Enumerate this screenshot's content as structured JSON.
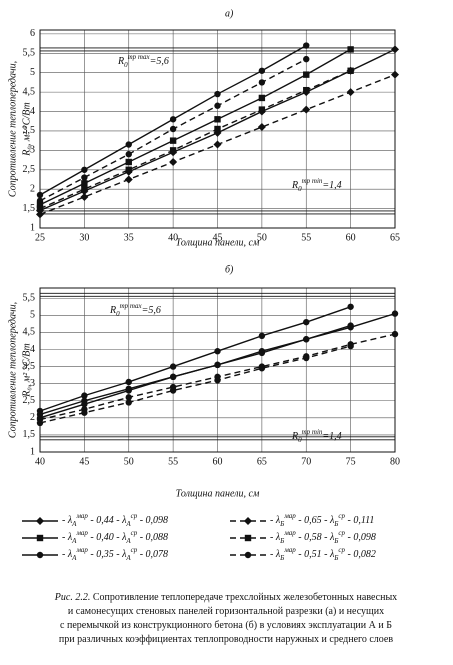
{
  "chart_data": [
    {
      "type": "line",
      "title": "а)",
      "x_label": "Толщина панели, см",
      "y_label": "Сопротивление теплопередачи,",
      "y_label_2": "R₀, м² °С/Вт",
      "x": [
        25,
        30,
        35,
        40,
        45,
        50,
        55,
        60,
        65
      ],
      "xlim": [
        25,
        65
      ],
      "xticks": [
        25,
        30,
        35,
        40,
        45,
        50,
        55,
        60,
        65
      ],
      "ylim": [
        1,
        6.1
      ],
      "yticks": [
        1,
        {
          "value": 1.5,
          "label": "1,5"
        },
        2,
        {
          "value": 2.5,
          "label": "2,5"
        },
        3,
        {
          "value": 3.5,
          "label": "3,5"
        },
        4,
        {
          "value": 4.5,
          "label": "4,5"
        },
        5,
        {
          "value": 5.5,
          "label": "5,5"
        },
        6
      ],
      "grid": true,
      "reference_lines": [
        {
          "value": 5.6,
          "label_main": "R",
          "label_sub": "0",
          "label_sup": "тр max",
          "label_value": "=5,6"
        },
        {
          "value": 1.4,
          "label_main": "R",
          "label_sub": "0",
          "label_sup": "тр min",
          "label_value": "=1,4"
        }
      ],
      "series": [
        {
          "color": "#111111",
          "marker": "diamond",
          "dashed": false,
          "values": [
            1.45,
            1.95,
            2.45,
            2.95,
            3.45,
            4.0,
            4.5,
            5.05,
            5.6
          ],
          "legend": {
            "t1": "- λ",
            "sub1": "А",
            "sup1": "мар",
            "t2": " - 0,44 - λ",
            "sub2": "А",
            "sup2": "ср",
            "t3": " - 0,098"
          }
        },
        {
          "color": "#111111",
          "marker": "diamond",
          "dashed": true,
          "values": [
            1.35,
            1.8,
            2.25,
            2.7,
            3.15,
            3.6,
            4.05,
            4.5,
            4.95
          ],
          "legend": {
            "t1": "- λ",
            "sub1": "Б",
            "sup1": "мар",
            "t2": " - 0,65 - λ",
            "sub2": "Б",
            "sup2": "ср",
            "t3": " - 0,111"
          }
        },
        {
          "color": "#111111",
          "marker": "square",
          "dashed": false,
          "values": [
            1.6,
            2.15,
            2.7,
            3.25,
            3.8,
            4.35,
            4.95,
            5.6,
            null
          ],
          "legend": {
            "t1": "- λ",
            "sub1": "А",
            "sup1": "мар",
            "t2": " - 0,40 - λ",
            "sub2": "А",
            "sup2": "ср",
            "t3": " - 0,088"
          }
        },
        {
          "color": "#111111",
          "marker": "square",
          "dashed": true,
          "values": [
            1.5,
            2.0,
            2.5,
            3.0,
            3.55,
            4.05,
            4.55,
            5.05,
            null
          ],
          "legend": {
            "t1": "- λ",
            "sub1": "Б",
            "sup1": "мар",
            "t2": " - 0,58 - λ",
            "sub2": "Б",
            "sup2": "ср",
            "t3": " - 0,098"
          }
        },
        {
          "color": "#111111",
          "marker": "circle",
          "dashed": false,
          "values": [
            1.85,
            2.5,
            3.15,
            3.8,
            4.45,
            5.05,
            5.7,
            null,
            null
          ],
          "legend": {
            "t1": "- λ",
            "sub1": "А",
            "sup1": "мар",
            "t2": " - 0,35 - λ",
            "sub2": "А",
            "sup2": "ср",
            "t3": " - 0,078"
          }
        },
        {
          "color": "#111111",
          "marker": "circle",
          "dashed": true,
          "values": [
            1.7,
            2.3,
            2.9,
            3.55,
            4.15,
            4.75,
            5.35,
            null,
            null
          ],
          "legend": {
            "t1": "- λ",
            "sub1": "Б",
            "sup1": "мар",
            "t2": " - 0,51 - λ",
            "sub2": "Б",
            "sup2": "ср",
            "t3": " - 0,082"
          }
        }
      ]
    },
    {
      "type": "line",
      "title": "б)",
      "x_label": "Толщина панели, см",
      "y_label": "Сопротивление теплопередачи,",
      "y_label_2": "R₀, м² °С/Вт",
      "x": [
        40,
        45,
        50,
        55,
        60,
        65,
        70,
        75,
        80
      ],
      "xlim": [
        40,
        80
      ],
      "xticks": [
        40,
        45,
        50,
        55,
        60,
        65,
        70,
        75,
        80
      ],
      "ylim": [
        1,
        5.8
      ],
      "yticks": [
        1,
        {
          "value": 1.5,
          "label": "1,5"
        },
        2,
        {
          "value": 2.5,
          "label": "2,5"
        },
        3,
        {
          "value": 3.5,
          "label": "3,5"
        },
        4,
        {
          "value": 4.5,
          "label": "4,5"
        },
        5,
        {
          "value": 5.5,
          "label": "5,5"
        }
      ],
      "grid": true,
      "reference_lines": [
        {
          "value": 5.6,
          "label_main": "R",
          "label_sub": "0",
          "label_sup": "тр max",
          "label_value": "=5,6"
        },
        {
          "value": 1.4,
          "label_main": "R",
          "label_sub": "0",
          "label_sup": "тр min",
          "label_value": "=1,4"
        }
      ],
      "series": [
        {
          "color": "#111111",
          "marker": "circle",
          "dashed": false,
          "values": [
            2.2,
            2.65,
            3.05,
            3.5,
            3.95,
            4.4,
            4.8,
            5.25,
            null
          ]
        },
        {
          "color": "#111111",
          "marker": "circle",
          "dashed": false,
          "values": [
            2.1,
            2.5,
            2.85,
            3.2,
            3.55,
            3.9,
            4.3,
            4.65,
            5.05
          ]
        },
        {
          "color": "#111111",
          "marker": "circle",
          "dashed": false,
          "values": [
            2.0,
            2.4,
            2.8,
            3.2,
            3.55,
            3.95,
            4.3,
            4.7,
            null
          ]
        },
        {
          "color": "#111111",
          "marker": "circle",
          "dashed": true,
          "values": [
            1.95,
            2.25,
            2.6,
            2.9,
            3.2,
            3.5,
            3.8,
            4.15,
            4.45
          ]
        },
        {
          "color": "#111111",
          "marker": "circle",
          "dashed": true,
          "values": [
            1.85,
            2.15,
            2.45,
            2.8,
            3.1,
            3.45,
            3.75,
            4.1,
            null
          ]
        }
      ]
    }
  ],
  "caption": {
    "label": "Рис. 2.2.",
    "lines": [
      " Сопротивление теплопередаче трехслойных железобетонных навесных",
      "и самонесущих стеновых панелей горизонтальной разрезки (а) и несущих",
      "с перемычкой из конструкционного бетона (б) в условиях эксплуатации А и Б",
      "при различных коэффициентах теплопроводности наружных и среднего слоев"
    ]
  }
}
